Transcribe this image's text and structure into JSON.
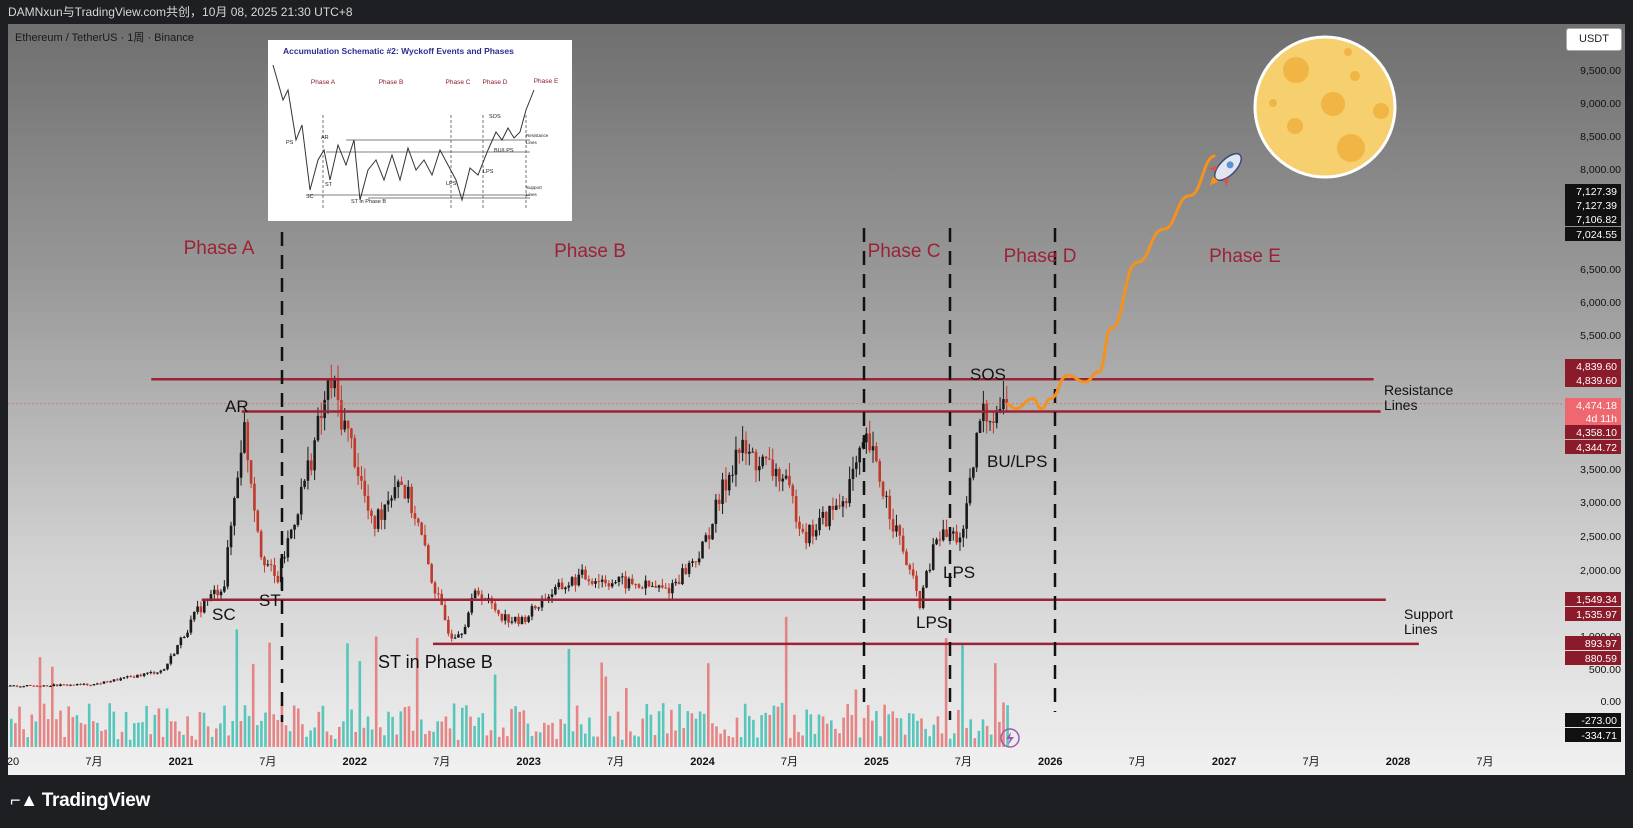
{
  "header": {
    "title": "DAMNxun与TradingView.com共创，10月 08, 2025 21:30 UTC+8",
    "symbol": "Ethereum / TetherUS · 1周 · Binance",
    "currency": "USDT"
  },
  "footer": {
    "brand": "TradingView"
  },
  "colors": {
    "level_line": "#9b2335",
    "phase_text": "#9b2335",
    "projection": "#f5921e",
    "candle_up": "#1a1a1a",
    "candle_down": "#c0392b",
    "volume_up": "#3fbfb4",
    "volume_down": "#e57373",
    "moon": "#f6cf6e"
  },
  "icons": [
    "rocket-icon",
    "moon-icon",
    "lightning-icon",
    "tradingview-logo-icon"
  ],
  "chart_data": {
    "type": "line",
    "title": "",
    "series": [
      {
        "values": [
          [
            2020.0,
            230
          ],
          [
            2020.5,
            260
          ],
          [
            2020.9,
            480
          ],
          [
            2021.1,
            1400
          ],
          [
            2021.25,
            1800
          ],
          [
            2021.36,
            4200
          ],
          [
            2021.46,
            2300
          ],
          [
            2021.55,
            1800
          ],
          [
            2021.7,
            3200
          ],
          [
            2021.86,
            4800
          ],
          [
            2022.0,
            3700
          ],
          [
            2022.1,
            2600
          ],
          [
            2022.25,
            3400
          ],
          [
            2022.35,
            2800
          ],
          [
            2022.45,
            1800
          ],
          [
            2022.55,
            1000
          ],
          [
            2022.62,
            1100
          ],
          [
            2022.7,
            1700
          ],
          [
            2022.85,
            1300
          ],
          [
            2022.95,
            1200
          ],
          [
            2023.1,
            1600
          ],
          [
            2023.3,
            1900
          ],
          [
            2023.55,
            1800
          ],
          [
            2023.8,
            1700
          ],
          [
            2024.0,
            2300
          ],
          [
            2024.2,
            3800
          ],
          [
            2024.45,
            3400
          ],
          [
            2024.6,
            2500
          ],
          [
            2024.8,
            3000
          ],
          [
            2024.95,
            3900
          ],
          [
            2025.1,
            2700
          ],
          [
            2025.25,
            1500
          ],
          [
            2025.35,
            2500
          ],
          [
            2025.5,
            2500
          ],
          [
            2025.6,
            4300
          ],
          [
            2025.75,
            4474
          ]
        ]
      },
      {
        "name": "projection",
        "values": [
          [
            2025.75,
            4474
          ],
          [
            2025.8,
            4400
          ],
          [
            2025.9,
            4550
          ],
          [
            2025.95,
            4400
          ],
          [
            2026.0,
            4550
          ],
          [
            2026.1,
            4900
          ],
          [
            2026.2,
            4800
          ],
          [
            2026.28,
            4950
          ],
          [
            2026.35,
            5600
          ],
          [
            2026.5,
            6600
          ],
          [
            2026.65,
            7100
          ],
          [
            2026.8,
            7600
          ],
          [
            2026.95,
            8200
          ]
        ]
      }
    ],
    "x_ticks": [
      "20",
      "7月",
      "2021",
      "7月",
      "2022",
      "7月",
      "2023",
      "7月",
      "2024",
      "7月",
      "2025",
      "7月",
      "2026",
      "7月",
      "2027",
      "7月",
      "2028",
      "7月"
    ],
    "y_ticks": [
      "9,500.00",
      "9,000.00",
      "8,500.00",
      "8,000.00",
      "6,500.00",
      "6,000.00",
      "5,500.00",
      "3,500.00",
      "3,000.00",
      "2,500.00",
      "2,000.00",
      "1,000.00",
      "500.00",
      "0.00"
    ],
    "right_labels": [
      {
        "text": "7,127.39",
        "value": 7127.39,
        "style": "dark"
      },
      {
        "text": "7,127.39",
        "value": 7127.39,
        "style": "dark"
      },
      {
        "text": "7,106.82",
        "value": 7106.82,
        "style": "dark"
      },
      {
        "text": "7,024.55",
        "value": 7024.55,
        "style": "dark"
      },
      {
        "text": "4,839.60",
        "value": 4839.6,
        "style": "red"
      },
      {
        "text": "4,839.60",
        "value": 4839.6,
        "style": "red"
      },
      {
        "text": "4,474.18",
        "value": 4474.18,
        "style": "pink"
      },
      {
        "text": "4d 11h",
        "style": "pink"
      },
      {
        "text": "4,358.10",
        "value": 4358.1,
        "style": "red"
      },
      {
        "text": "4,344.72",
        "value": 4344.72,
        "style": "red"
      },
      {
        "text": "1,549.34",
        "value": 1549.34,
        "style": "red"
      },
      {
        "text": "1,535.97",
        "value": 1535.97,
        "style": "red"
      },
      {
        "text": "893.97",
        "value": 893.97,
        "style": "red"
      },
      {
        "text": "880.59",
        "value": 880.59,
        "style": "red"
      },
      {
        "text": "-273.00",
        "value": -273.0,
        "style": "dark"
      },
      {
        "text": "-334.71",
        "value": -334.71,
        "style": "dark"
      }
    ],
    "levels": [
      {
        "name": "resistance-upper",
        "value": 4839.6
      },
      {
        "name": "resistance-lower",
        "value": 4358.1
      },
      {
        "name": "support-upper",
        "value": 1549.34
      },
      {
        "name": "support-lower",
        "value": 880.59
      }
    ],
    "level_labels": {
      "resistance": "Resistance\nLines",
      "support": "Support\nLines"
    },
    "phases": [
      "Phase A",
      "Phase B",
      "Phase C",
      "Phase D",
      "Phase E"
    ],
    "annotations": [
      "AR",
      "SC",
      "ST",
      "ST in Phase B",
      "LPS",
      "LPS",
      "SOS",
      "BU/LPS"
    ],
    "grid": false,
    "legend": "none"
  },
  "inset": {
    "title": "Accumulation Schematic #2: Wyckoff Events and Phases",
    "phases": [
      "Phase A",
      "Phase B",
      "Phase C",
      "Phase D",
      "Phase E"
    ],
    "labels": [
      "PS",
      "AR",
      "SC",
      "ST",
      "ST in Phase B",
      "LPS",
      "LPS",
      "SOS",
      "BU/LPS",
      "Resistance",
      "Lines",
      "Support",
      "Lines"
    ]
  }
}
